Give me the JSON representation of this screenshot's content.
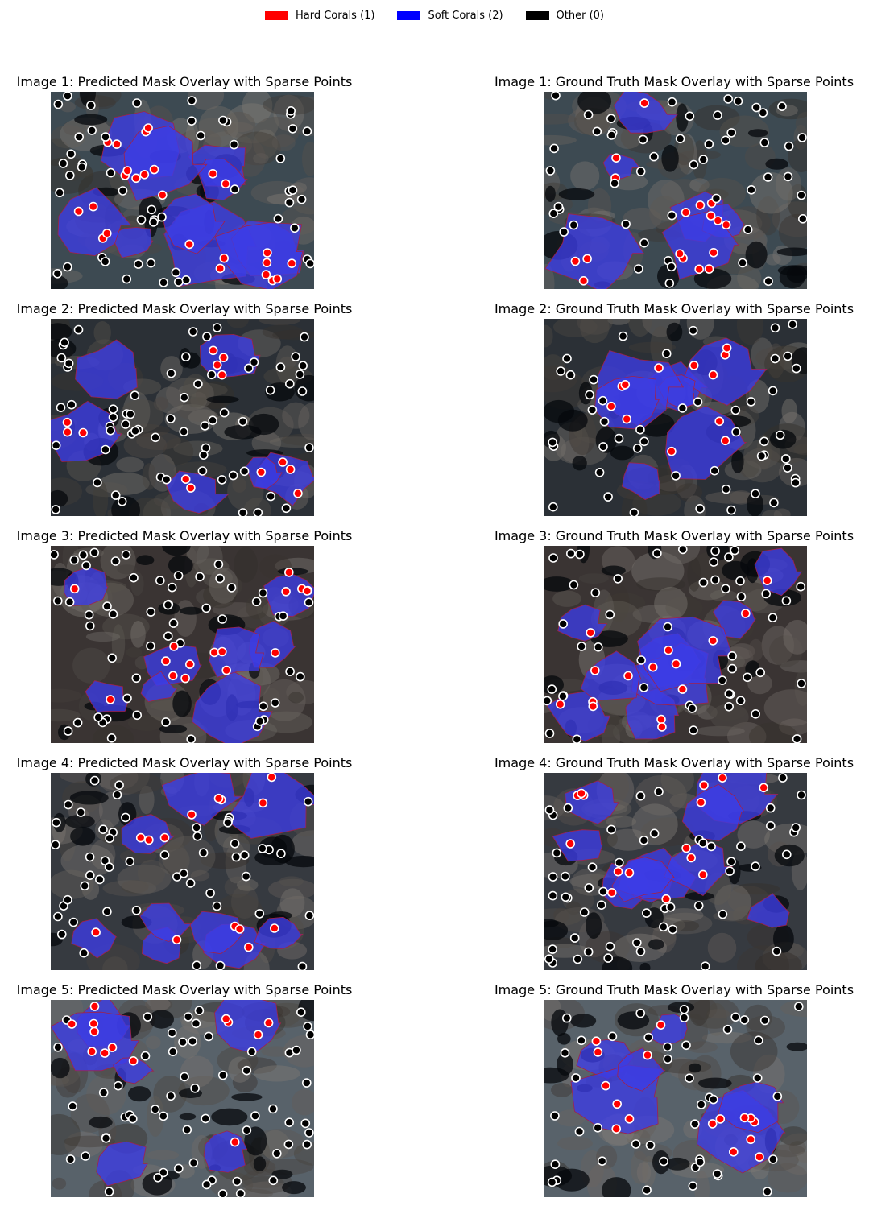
{
  "colors": {
    "hard": "#ff0000",
    "soft": "#0000ff",
    "other": "#000000"
  },
  "legend": [
    {
      "label": "Hard Corals (1)",
      "color": "#ff0000",
      "icon": "red-swatch"
    },
    {
      "label": "Soft Corals (2)",
      "color": "#0000ff",
      "icon": "blue-swatch"
    },
    {
      "label": "Other (0)",
      "color": "#000000",
      "icon": "black-swatch"
    }
  ],
  "panels": [
    {
      "title": "Image 1: Predicted Mask Overlay with Sparse Points"
    },
    {
      "title": "Image 1: Ground Truth Mask Overlay with Sparse Points"
    },
    {
      "title": "Image 2: Predicted Mask Overlay with Sparse Points"
    },
    {
      "title": "Image 2: Ground Truth Mask Overlay with Sparse Points"
    },
    {
      "title": "Image 3: Predicted Mask Overlay with Sparse Points"
    },
    {
      "title": "Image 3: Ground Truth Mask Overlay with Sparse Points"
    },
    {
      "title": "Image 4: Predicted Mask Overlay with Sparse Points"
    },
    {
      "title": "Image 4: Ground Truth Mask Overlay with Sparse Points"
    },
    {
      "title": "Image 5: Predicted Mask Overlay with Sparse Points"
    },
    {
      "title": "Image 5: Ground Truth Mask Overlay with Sparse Points"
    }
  ]
}
